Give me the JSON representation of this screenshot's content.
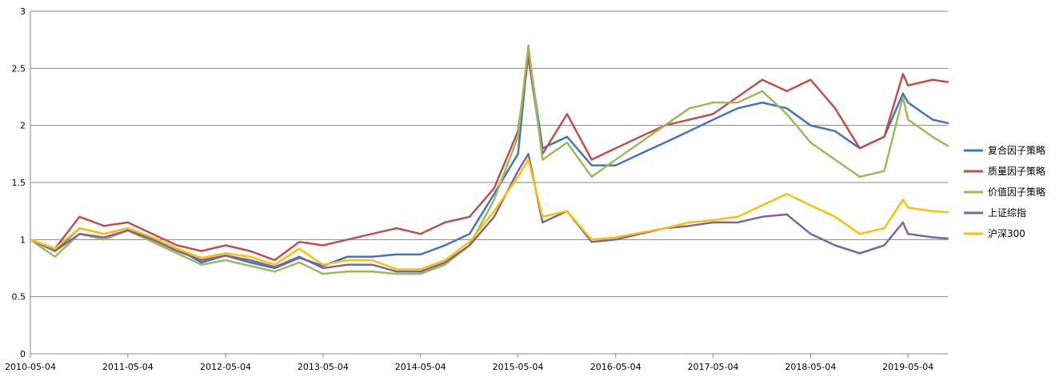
{
  "chart_data": {
    "type": "line",
    "title": "",
    "xlabel": "",
    "ylabel": "",
    "ylim": [
      0,
      3
    ],
    "y_ticks": [
      "0",
      "0.5",
      "1",
      "1.5",
      "2",
      "2.5",
      "3"
    ],
    "x_ticks": [
      "2010-05-04",
      "2011-05-04",
      "2012-05-04",
      "2013-05-04",
      "2014-05-04",
      "2015-05-04",
      "2016-05-04",
      "2017-05-04",
      "2018-05-04",
      "2019-05-04"
    ],
    "grid": "horizontal",
    "legend_position": "right",
    "x": [
      "2010-05-04",
      "2010-08-04",
      "2010-11-04",
      "2011-02-04",
      "2011-05-04",
      "2011-08-04",
      "2011-11-04",
      "2012-02-04",
      "2012-05-04",
      "2012-08-04",
      "2012-11-04",
      "2013-02-04",
      "2013-05-04",
      "2013-08-04",
      "2013-11-04",
      "2014-02-04",
      "2014-05-04",
      "2014-08-04",
      "2014-11-04",
      "2015-02-04",
      "2015-05-04",
      "2015-06-12",
      "2015-08-04",
      "2015-11-04",
      "2016-02-04",
      "2016-05-04",
      "2016-08-04",
      "2016-11-04",
      "2017-02-04",
      "2017-05-04",
      "2017-08-04",
      "2017-11-04",
      "2018-02-04",
      "2018-05-04",
      "2018-08-04",
      "2018-11-04",
      "2019-02-04",
      "2019-04-15",
      "2019-05-04",
      "2019-08-04",
      "2019-09-30"
    ],
    "series": [
      {
        "name": "复合因子策略",
        "color": "#4472c4",
        "values": [
          1.0,
          0.9,
          1.1,
          1.05,
          1.1,
          1.0,
          0.92,
          0.8,
          0.86,
          0.8,
          0.75,
          0.84,
          0.77,
          0.85,
          0.85,
          0.87,
          0.87,
          0.95,
          1.05,
          1.4,
          1.75,
          2.65,
          1.8,
          1.9,
          1.65,
          1.65,
          1.75,
          1.85,
          1.95,
          2.05,
          2.15,
          2.2,
          2.15,
          2.0,
          1.95,
          1.8,
          1.9,
          2.28,
          2.2,
          2.05,
          2.02
        ]
      },
      {
        "name": "质量因子策略",
        "color": "#c0504d",
        "values": [
          1.0,
          0.92,
          1.2,
          1.12,
          1.15,
          1.05,
          0.95,
          0.9,
          0.95,
          0.9,
          0.82,
          0.98,
          0.95,
          1.0,
          1.05,
          1.1,
          1.05,
          1.15,
          1.2,
          1.45,
          1.95,
          2.6,
          1.75,
          2.1,
          1.7,
          1.8,
          1.9,
          2.0,
          2.05,
          2.1,
          2.25,
          2.4,
          2.3,
          2.4,
          2.15,
          1.8,
          1.9,
          2.45,
          2.35,
          2.4,
          2.38
        ]
      },
      {
        "name": "价值因子策略",
        "color": "#9bbb59",
        "values": [
          1.0,
          0.85,
          1.05,
          1.0,
          1.08,
          0.98,
          0.88,
          0.78,
          0.82,
          0.77,
          0.72,
          0.8,
          0.7,
          0.72,
          0.72,
          0.7,
          0.7,
          0.78,
          0.95,
          1.35,
          1.9,
          2.7,
          1.7,
          1.85,
          1.55,
          1.7,
          1.85,
          2.0,
          2.15,
          2.2,
          2.2,
          2.3,
          2.1,
          1.85,
          1.7,
          1.55,
          1.6,
          2.25,
          2.05,
          1.9,
          1.82
        ]
      },
      {
        "name": "上证综指",
        "color": "#8064a2",
        "values": [
          1.0,
          0.9,
          1.05,
          1.02,
          1.08,
          1.0,
          0.9,
          0.82,
          0.86,
          0.82,
          0.76,
          0.85,
          0.75,
          0.78,
          0.78,
          0.72,
          0.72,
          0.8,
          0.95,
          1.2,
          1.6,
          1.75,
          1.15,
          1.25,
          0.98,
          1.0,
          1.05,
          1.1,
          1.12,
          1.15,
          1.15,
          1.2,
          1.22,
          1.05,
          0.95,
          0.88,
          0.95,
          1.15,
          1.05,
          1.02,
          1.01
        ]
      },
      {
        "name": "沪深300",
        "color": "#ffc000",
        "values": [
          1.0,
          0.92,
          1.1,
          1.05,
          1.1,
          1.02,
          0.92,
          0.84,
          0.88,
          0.85,
          0.78,
          0.92,
          0.78,
          0.82,
          0.82,
          0.74,
          0.74,
          0.82,
          0.98,
          1.25,
          1.55,
          1.7,
          1.2,
          1.25,
          1.0,
          1.02,
          1.06,
          1.1,
          1.15,
          1.17,
          1.2,
          1.3,
          1.4,
          1.3,
          1.2,
          1.05,
          1.1,
          1.35,
          1.28,
          1.25,
          1.24
        ]
      }
    ]
  }
}
